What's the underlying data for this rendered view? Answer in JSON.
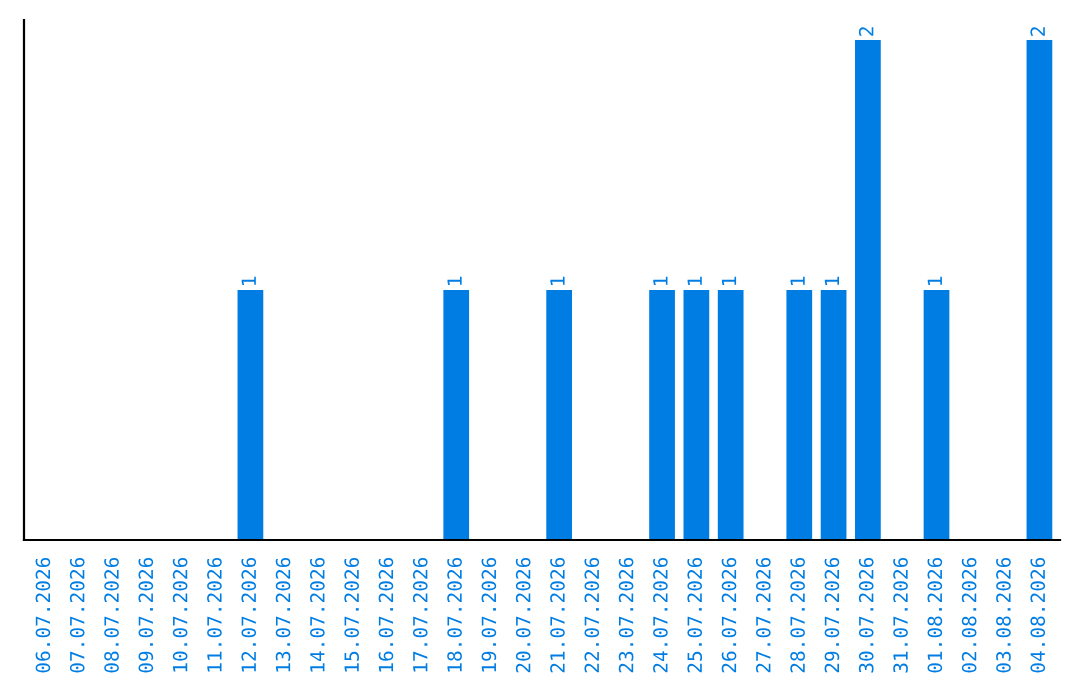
{
  "chart_data": {
    "type": "bar",
    "categories": [
      "06.07.2026",
      "07.07.2026",
      "08.07.2026",
      "09.07.2026",
      "10.07.2026",
      "11.07.2026",
      "12.07.2026",
      "13.07.2026",
      "14.07.2026",
      "15.07.2026",
      "16.07.2026",
      "17.07.2026",
      "18.07.2026",
      "19.07.2026",
      "20.07.2026",
      "21.07.2026",
      "22.07.2026",
      "23.07.2026",
      "24.07.2026",
      "25.07.2026",
      "26.07.2026",
      "27.07.2026",
      "28.07.2026",
      "29.07.2026",
      "30.07.2026",
      "31.07.2026",
      "01.08.2026",
      "02.08.2026",
      "03.08.2026",
      "04.08.2026"
    ],
    "values": [
      0,
      0,
      0,
      0,
      0,
      0,
      1,
      0,
      0,
      0,
      0,
      0,
      1,
      0,
      0,
      1,
      0,
      0,
      1,
      1,
      1,
      0,
      1,
      1,
      2,
      0,
      1,
      0,
      0,
      2
    ],
    "value_labels": [
      null,
      null,
      null,
      null,
      null,
      null,
      "1",
      null,
      null,
      null,
      null,
      null,
      "1",
      null,
      null,
      "1",
      null,
      null,
      "1",
      "1",
      "1",
      null,
      "1",
      "1",
      "2",
      null,
      "1",
      null,
      null,
      "2"
    ],
    "color": "#007de3",
    "ylim": [
      0,
      2.08
    ],
    "tick_labels": "x",
    "grid": false,
    "legend": false
  }
}
